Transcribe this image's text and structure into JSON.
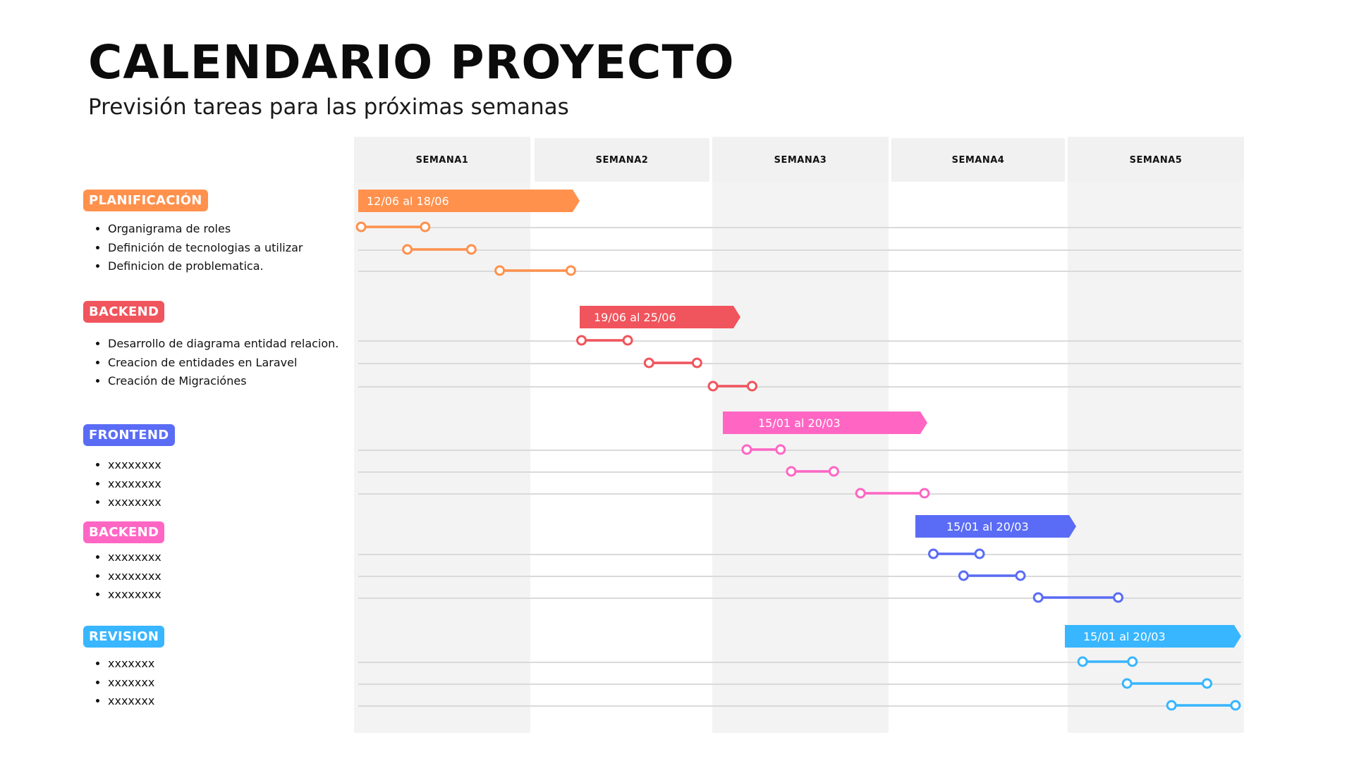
{
  "header": {
    "title": "CALENDARIO PROYECTO",
    "subtitle": "Previsión tareas para las próximas semanas"
  },
  "weeks": [
    "SEMANA1",
    "SEMANA2",
    "SEMANA3",
    "SEMANA4",
    "SEMANA5"
  ],
  "sections": [
    {
      "label": "PLANIFICACIÓN",
      "color": "#ff914d",
      "tasks": [
        "Organigrama de roles",
        "Definición de tecnologias a utilizar",
        "Definicion de problematica."
      ],
      "phase_label": "12/06 al 18/06",
      "timeline": [
        [
          0.04,
          0.4
        ],
        [
          0.3,
          0.66
        ],
        [
          0.82,
          1.22
        ]
      ]
    },
    {
      "label": "BACKEND",
      "color": "#f0545c",
      "tasks": [
        "Desarrollo de diagrama entidad relacion.",
        "Creacion de entidades en Laravel",
        "Creación de Migraciónes"
      ],
      "phase_label": "19/06 al 25/06",
      "timeline": [
        [
          1.28,
          1.54
        ],
        [
          1.66,
          1.93
        ],
        [
          2.02,
          2.24
        ]
      ]
    },
    {
      "label": "FRONTEND",
      "color": "#5a6cf5",
      "tasks": [
        "xxxxxxxx",
        "xxxxxxxx",
        "xxxxxxxx"
      ],
      "phase_label": "15/01 al 20/03",
      "timeline": [
        [
          2.21,
          2.4
        ],
        [
          2.46,
          2.7
        ],
        [
          2.85,
          3.21
        ]
      ]
    },
    {
      "label": "BACKEND",
      "color": "#ff66c4",
      "tasks": [
        "xxxxxxxx",
        "xxxxxxxx",
        "xxxxxxxx"
      ],
      "phase_label": "15/01 al 20/03",
      "timeline": [
        [
          3.26,
          3.52
        ],
        [
          3.43,
          3.75
        ],
        [
          3.85,
          4.3
        ]
      ]
    },
    {
      "label": "REVISION",
      "color": "#38b6ff",
      "tasks": [
        "xxxxxxx",
        "xxxxxxx",
        "xxxxxxx"
      ],
      "phase_label": "15/01 al 20/03",
      "timeline": [
        [
          4.1,
          4.38
        ],
        [
          4.35,
          4.8
        ],
        [
          4.6,
          4.96
        ]
      ]
    }
  ]
}
